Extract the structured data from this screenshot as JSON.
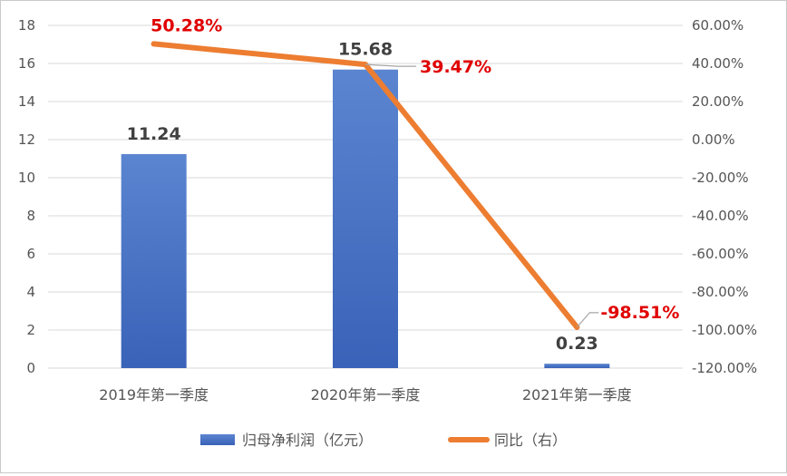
{
  "chart_data": {
    "type": "bar+line",
    "title": "",
    "categories": [
      "2019年第一季度",
      "2020年第一季度",
      "2021年第一季度"
    ],
    "series": [
      {
        "name": "归母净利润（亿元）",
        "type": "bar",
        "axis": "left",
        "values": [
          11.24,
          15.68,
          0.23
        ],
        "color": "#4472c4",
        "labels": [
          "11.24",
          "15.68",
          "0.23"
        ]
      },
      {
        "name": "同比（右）",
        "type": "line",
        "axis": "right",
        "values": [
          50.28,
          39.47,
          -98.51
        ],
        "color": "#ed7d31",
        "labels": [
          "50.28%",
          "39.47%",
          "-98.51%"
        ]
      }
    ],
    "y_left": {
      "min": 0,
      "max": 18,
      "step": 2,
      "ticks": [
        "0",
        "2",
        "4",
        "6",
        "8",
        "10",
        "12",
        "14",
        "16",
        "18"
      ]
    },
    "y_right": {
      "min": -120,
      "max": 60,
      "step": 20,
      "ticks": [
        "-120.00%",
        "-100.00%",
        "-80.00%",
        "-60.00%",
        "-40.00%",
        "-20.00%",
        "0.00%",
        "20.00%",
        "40.00%",
        "60.00%"
      ]
    },
    "grid": true,
    "legend": "bottom",
    "line_label_color": "#e00000"
  }
}
